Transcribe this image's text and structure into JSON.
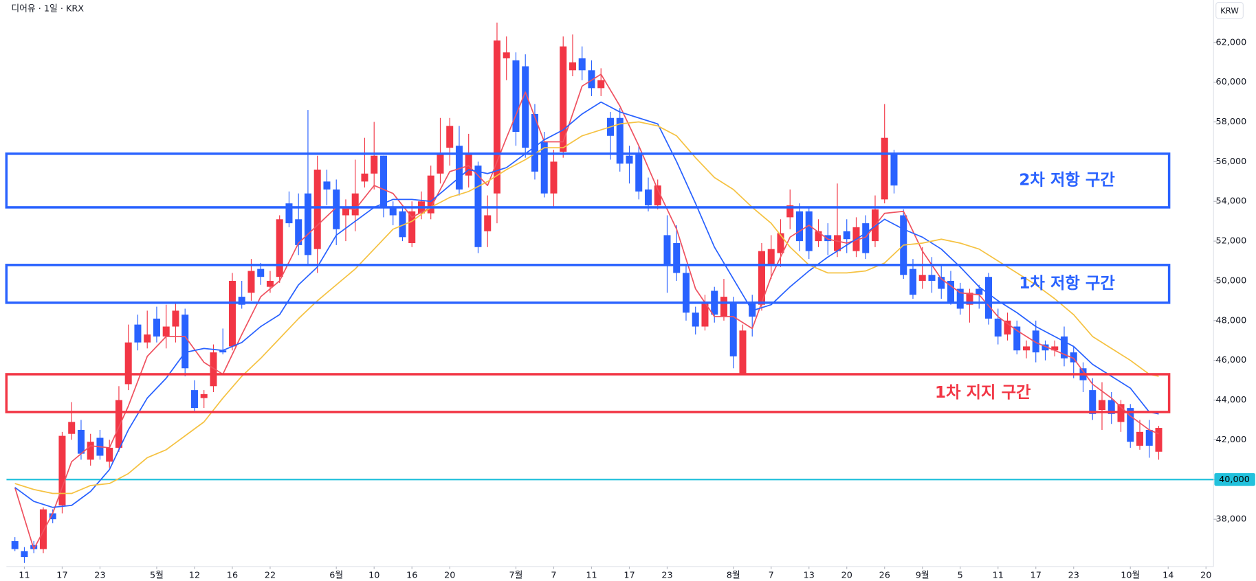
{
  "chart_data": {
    "type": "candlestick",
    "title": "디어유 · 1일 · KRX",
    "currency": "KRW",
    "up_color": "#f23645",
    "down_color": "#2962ff",
    "xlim": [
      -0.9,
      126.8
    ],
    "ylim": [
      35620,
      64135
    ],
    "xticks": [
      {
        "value": 1,
        "label": "11"
      },
      {
        "value": 5,
        "label": "17"
      },
      {
        "value": 9,
        "label": "23"
      },
      {
        "value": 15,
        "label": "5월"
      },
      {
        "value": 19,
        "label": "12"
      },
      {
        "value": 23,
        "label": "16"
      },
      {
        "value": 27,
        "label": "22"
      },
      {
        "value": 34,
        "label": "6월"
      },
      {
        "value": 38,
        "label": "10"
      },
      {
        "value": 42,
        "label": "16"
      },
      {
        "value": 46,
        "label": "20"
      },
      {
        "value": 53,
        "label": "7월"
      },
      {
        "value": 57,
        "label": "7"
      },
      {
        "value": 61,
        "label": "11"
      },
      {
        "value": 65,
        "label": "17"
      },
      {
        "value": 69,
        "label": "23"
      },
      {
        "value": 76,
        "label": "8월"
      },
      {
        "value": 80,
        "label": "7"
      },
      {
        "value": 84,
        "label": "13"
      },
      {
        "value": 88,
        "label": "20"
      },
      {
        "value": 92,
        "label": "26"
      },
      {
        "value": 96,
        "label": "9월"
      },
      {
        "value": 100,
        "label": "5"
      },
      {
        "value": 104,
        "label": "11"
      },
      {
        "value": 108,
        "label": "17"
      },
      {
        "value": 112,
        "label": "23"
      },
      {
        "value": 118,
        "label": "10월"
      },
      {
        "value": 122,
        "label": "14"
      },
      {
        "value": 126,
        "label": "20"
      }
    ],
    "yticks": [
      {
        "value": 38000,
        "label": "38,000"
      },
      {
        "value": 40000,
        "label": "40,000"
      },
      {
        "value": 42000,
        "label": "42,000"
      },
      {
        "value": 44000,
        "label": "44,000"
      },
      {
        "value": 46000,
        "label": "46,000"
      },
      {
        "value": 48000,
        "label": "48,000"
      },
      {
        "value": 50000,
        "label": "50,000"
      },
      {
        "value": 52000,
        "label": "52,000"
      },
      {
        "value": 54000,
        "label": "54,000"
      },
      {
        "value": 56000,
        "label": "56,000"
      },
      {
        "value": 58000,
        "label": "58,000"
      },
      {
        "value": 60000,
        "label": "60,000"
      },
      {
        "value": 62000,
        "label": "62,000"
      }
    ],
    "open": [
      36900,
      36400,
      36700,
      36500,
      38300,
      38700,
      42300,
      42500,
      41000,
      42100,
      40900,
      41600,
      44800,
      47800,
      46900,
      48100,
      47200,
      47700,
      48300,
      44500,
      44100,
      44700,
      46500,
      46700,
      49200,
      49400,
      50600,
      49700,
      50200,
      53900,
      53100,
      54400,
      51600,
      55000,
      54600,
      53300,
      53300,
      55000,
      55400,
      56300,
      53700,
      53500,
      51900,
      53400,
      53400,
      55400,
      56700,
      56800,
      55300,
      55800,
      52500,
      54400,
      61200,
      61100,
      60800,
      58400,
      57000,
      54400,
      56500,
      60600,
      61200,
      60600,
      59700,
      58200,
      58200,
      56300,
      56400,
      54600,
      53800,
      52300,
      51900,
      50400,
      48400,
      47700,
      49500,
      48200,
      48900,
      45300,
      48900,
      48800,
      50800,
      51400,
      53200,
      53500,
      53500,
      52000,
      52300,
      51500,
      52500,
      51500,
      52900,
      52000,
      54100,
      56400,
      53300,
      50600,
      50000,
      50300,
      50200,
      50000,
      49600,
      48800,
      49600,
      50200,
      48100,
      47300,
      47700,
      46500,
      47500,
      46800,
      46500,
      47200,
      46400,
      45600,
      44500,
      43500,
      44000,
      42900,
      43600,
      41700,
      42500,
      41400
    ],
    "high": [
      37100,
      36600,
      36900,
      38600,
      38500,
      42400,
      43900,
      43000,
      42300,
      42500,
      42000,
      44700,
      47800,
      48300,
      48500,
      48700,
      48800,
      48900,
      48600,
      45000,
      44500,
      46800,
      47600,
      50400,
      50000,
      51100,
      50900,
      50500,
      53300,
      54500,
      54400,
      58600,
      56300,
      55600,
      55100,
      54100,
      56100,
      57200,
      58000,
      56300,
      54000,
      53800,
      54000,
      54500,
      55800,
      58200,
      58200,
      57800,
      57400,
      56000,
      54300,
      63000,
      62300,
      61500,
      61400,
      58900,
      57500,
      56600,
      62300,
      62400,
      61800,
      61100,
      60700,
      58500,
      58700,
      56800,
      56800,
      55200,
      55100,
      53300,
      52800,
      50800,
      48700,
      49300,
      49700,
      50100,
      49200,
      47800,
      49300,
      51900,
      52300,
      53100,
      54600,
      53900,
      53700,
      53100,
      52900,
      54900,
      53100,
      53200,
      53300,
      54300,
      58900,
      56600,
      53600,
      51100,
      51700,
      51200,
      50800,
      50500,
      49900,
      49600,
      49800,
      50400,
      48600,
      48400,
      48000,
      47000,
      48000,
      47000,
      47000,
      47700,
      46700,
      45900,
      45100,
      44900,
      44400,
      44000,
      43800,
      43000,
      43000,
      42700
    ],
    "low": [
      36400,
      35800,
      36300,
      36300,
      37800,
      38300,
      42000,
      41000,
      40700,
      41000,
      40600,
      41400,
      44500,
      46500,
      46600,
      46900,
      46600,
      46900,
      45200,
      43400,
      43600,
      44400,
      46300,
      46500,
      48600,
      49000,
      49800,
      49400,
      49900,
      52700,
      51300,
      50800,
      50400,
      53800,
      51800,
      52000,
      52500,
      54700,
      54600,
      53200,
      52800,
      52000,
      51700,
      53100,
      53100,
      54900,
      55800,
      54300,
      54700,
      51400,
      51700,
      52900,
      60100,
      56800,
      56200,
      55100,
      54200,
      53700,
      56200,
      60300,
      60100,
      59300,
      59300,
      56100,
      55500,
      54900,
      54100,
      53500,
      53600,
      49400,
      50000,
      48000,
      47300,
      47500,
      47900,
      48000,
      45600,
      45300,
      47200,
      48500,
      50100,
      50700,
      52600,
      51500,
      51100,
      51700,
      51300,
      51200,
      51400,
      51200,
      51100,
      51700,
      53900,
      54400,
      50100,
      49100,
      49600,
      49400,
      49100,
      48800,
      48300,
      47900,
      48600,
      47800,
      46800,
      47000,
      46300,
      46100,
      45900,
      46000,
      46200,
      45700,
      45100,
      44400,
      43000,
      42500,
      42800,
      42400,
      41600,
      41500,
      41100,
      41000
    ],
    "close": [
      36500,
      36100,
      36500,
      38500,
      38000,
      42200,
      42900,
      41300,
      41900,
      41200,
      41600,
      44000,
      46900,
      46900,
      47300,
      47200,
      47700,
      48500,
      45600,
      43600,
      44300,
      46400,
      46400,
      50000,
      48800,
      50500,
      50200,
      50000,
      53100,
      52900,
      51800,
      51300,
      55600,
      54600,
      52600,
      53700,
      54400,
      55400,
      56300,
      53700,
      53300,
      52200,
      53500,
      54000,
      55300,
      56400,
      57800,
      54600,
      56400,
      51700,
      53300,
      62100,
      61500,
      57500,
      56700,
      55500,
      54400,
      56000,
      61800,
      61000,
      60600,
      59700,
      60100,
      57300,
      55900,
      55900,
      54500,
      53800,
      54800,
      50800,
      50400,
      48400,
      47700,
      48900,
      48300,
      49200,
      46200,
      47500,
      48200,
      51500,
      51600,
      52400,
      53800,
      52000,
      51500,
      52500,
      52000,
      52300,
      52100,
      52700,
      51400,
      53600,
      57200,
      54800,
      50300,
      49300,
      50300,
      50000,
      49600,
      48900,
      48600,
      49400,
      49300,
      48100,
      47200,
      48000,
      46500,
      46700,
      46400,
      46500,
      46700,
      46100,
      45900,
      45000,
      43300,
      44000,
      43300,
      43800,
      41900,
      42400,
      41700,
      42600
    ],
    "lines": [
      {
        "color": "#ef5361",
        "x": [
          0,
          2,
          4,
          6,
          8,
          10,
          12,
          14,
          16,
          18,
          20,
          22,
          24,
          26,
          28,
          30,
          32,
          34,
          36,
          38,
          40,
          42,
          44,
          46,
          48,
          50,
          52,
          54,
          56,
          58,
          60,
          62,
          64,
          66,
          68,
          70,
          72,
          74,
          76,
          78,
          80,
          82,
          84,
          86,
          88,
          90,
          92,
          94,
          96,
          98,
          100,
          102,
          104,
          106,
          108,
          110,
          112,
          114,
          116,
          118,
          120,
          121
        ],
        "values": [
          39600,
          36500,
          38300,
          40900,
          41700,
          41600,
          43700,
          46200,
          47200,
          47200,
          45900,
          45300,
          47300,
          49200,
          50000,
          51900,
          52800,
          53700,
          53600,
          54800,
          54400,
          53200,
          53700,
          55500,
          55800,
          54800,
          57200,
          59500,
          57000,
          57000,
          59800,
          60400,
          58800,
          56800,
          54600,
          52600,
          49600,
          48200,
          48200,
          47600,
          50200,
          52200,
          52800,
          52100,
          51900,
          52200,
          53400,
          53500,
          51500,
          50100,
          49400,
          49300,
          48200,
          47500,
          46900,
          46500,
          46100,
          44800,
          44100,
          43200,
          42500,
          42300
        ]
      },
      {
        "color": "#2962ff",
        "x": [
          0,
          2,
          4,
          6,
          8,
          10,
          12,
          14,
          16,
          18,
          20,
          22,
          24,
          26,
          28,
          30,
          32,
          34,
          36,
          38,
          40,
          42,
          44,
          46,
          48,
          50,
          52,
          54,
          56,
          58,
          60,
          62,
          64,
          66,
          68,
          70,
          72,
          74,
          76,
          78,
          80,
          82,
          84,
          86,
          88,
          90,
          92,
          94,
          96,
          98,
          100,
          102,
          104,
          106,
          108,
          110,
          112,
          114,
          116,
          118,
          120,
          121
        ],
        "values": [
          39600,
          38900,
          38600,
          38700,
          39400,
          40500,
          42500,
          44100,
          45100,
          46400,
          46600,
          46500,
          46900,
          47700,
          48300,
          49800,
          50700,
          52300,
          53000,
          53700,
          54100,
          54100,
          54000,
          54800,
          55600,
          55400,
          55700,
          56400,
          57100,
          57600,
          58400,
          59000,
          58500,
          58200,
          57900,
          56000,
          53900,
          51700,
          50100,
          48500,
          48800,
          49700,
          50500,
          51200,
          51800,
          52400,
          53100,
          52600,
          52200,
          51600,
          50700,
          49700,
          49000,
          48400,
          47700,
          47200,
          46700,
          45800,
          45200,
          44600,
          43400,
          43300
        ]
      },
      {
        "color": "#f5c242",
        "x": [
          0,
          2,
          4,
          6,
          8,
          10,
          12,
          14,
          16,
          18,
          20,
          22,
          24,
          26,
          28,
          30,
          32,
          34,
          36,
          38,
          40,
          42,
          44,
          46,
          48,
          50,
          52,
          54,
          56,
          58,
          60,
          62,
          64,
          66,
          68,
          70,
          72,
          74,
          76,
          78,
          80,
          82,
          84,
          86,
          88,
          90,
          92,
          94,
          96,
          98,
          100,
          102,
          104,
          106,
          108,
          110,
          112,
          114,
          116,
          118,
          120,
          121
        ],
        "values": [
          39800,
          39500,
          39300,
          39300,
          39700,
          39800,
          40300,
          41100,
          41500,
          42200,
          42900,
          44100,
          45200,
          46100,
          47100,
          48100,
          49000,
          49800,
          50600,
          51600,
          52600,
          53000,
          53700,
          54200,
          54500,
          55000,
          55600,
          56100,
          56700,
          56700,
          57300,
          57600,
          57900,
          58000,
          57800,
          57300,
          56200,
          55200,
          54600,
          53700,
          52900,
          51700,
          50800,
          50400,
          50400,
          50500,
          50900,
          51800,
          51900,
          52100,
          51900,
          51600,
          51000,
          50400,
          49800,
          49100,
          48300,
          47200,
          46600,
          46000,
          45300,
          45200
        ]
      }
    ],
    "zones": [
      {
        "label": "2차 저항 구간",
        "color": "#2962ff",
        "range": [
          53700,
          56400
        ],
        "xlim": [
          -0.9,
          122.1
        ]
      },
      {
        "label": "1차 저항 구간",
        "color": "#2962ff",
        "range": [
          48900,
          50800
        ],
        "xlim": [
          -0.9,
          122.1
        ]
      },
      {
        "label": "1차 지지 구간",
        "color": "#f23645",
        "range": [
          43400,
          45300
        ],
        "xlim": [
          -0.9,
          122.1
        ]
      }
    ],
    "hline": {
      "value": 40000,
      "label": "40,000",
      "color": "#22c1dc"
    }
  }
}
